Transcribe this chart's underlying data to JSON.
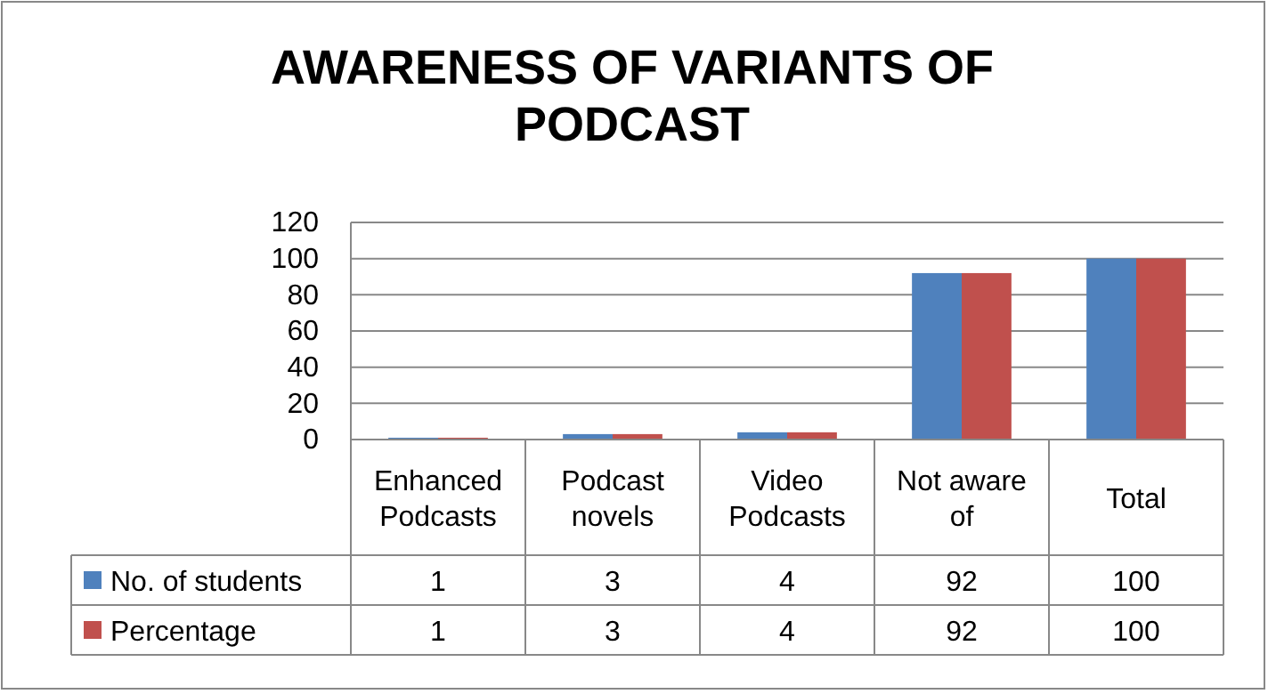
{
  "chart_data": {
    "type": "bar",
    "title": "AWARENESS OF VARIANTS OF PODCAST",
    "categories": [
      "Enhanced Podcasts",
      "Podcast novels",
      "Video Podcasts",
      "Not aware of",
      "Total"
    ],
    "series": [
      {
        "name": "No. of students",
        "color": "#4f81bd",
        "values": [
          1,
          3,
          4,
          92,
          100
        ]
      },
      {
        "name": "Percentage",
        "color": "#c0504d",
        "values": [
          1,
          3,
          4,
          92,
          100
        ]
      }
    ],
    "ylim": [
      0,
      120
    ],
    "yticks": [
      0,
      20,
      40,
      60,
      80,
      100,
      120
    ],
    "grid": "y",
    "legend": "bottom",
    "data_labels": true
  }
}
